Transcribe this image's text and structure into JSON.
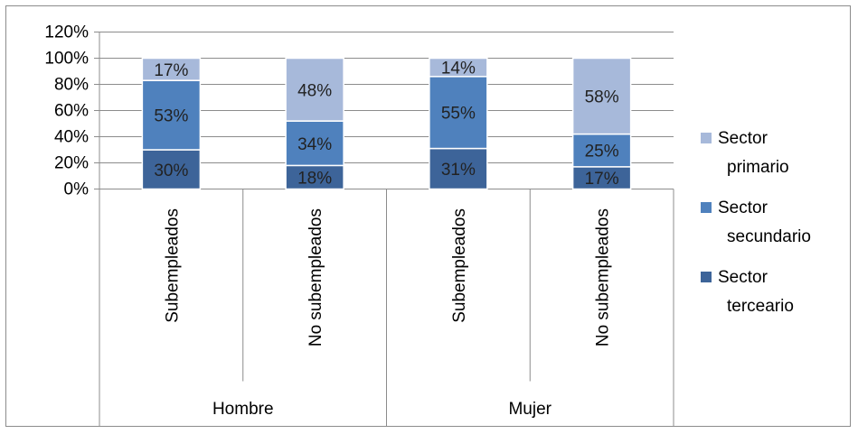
{
  "chart_data": {
    "type": "bar",
    "stacked": true,
    "percent_stacked": true,
    "groups": [
      "Hombre",
      "Mujer"
    ],
    "categories": [
      "Subempleados",
      "No subempleados",
      "Subempleados",
      "No subempleados"
    ],
    "category_groups": [
      0,
      0,
      1,
      1
    ],
    "series": [
      {
        "name": "Sector primario",
        "values": [
          30,
          18,
          31,
          17
        ],
        "color": "#3d6499"
      },
      {
        "name": "Sector secundario",
        "values": [
          53,
          34,
          55,
          25
        ],
        "color": "#4f81bd"
      },
      {
        "name": "Sector terceario",
        "values": [
          17,
          48,
          14,
          58
        ],
        "color": "#a7b9da"
      }
    ],
    "data_labels": [
      [
        "30%",
        "18%",
        "31%",
        "17%"
      ],
      [
        "53%",
        "34%",
        "55%",
        "25%"
      ],
      [
        "17%",
        "48%",
        "14%",
        "58%"
      ]
    ],
    "legend_lines": [
      [
        "Sector",
        "terceario"
      ],
      [
        "Sector",
        "secundario"
      ],
      [
        "Sector",
        "primario"
      ]
    ],
    "yticks": [
      "0%",
      "20%",
      "40%",
      "60%",
      "80%",
      "100%",
      "120%"
    ],
    "ylim": [
      0,
      120
    ],
    "grid": true,
    "legend_position": "right",
    "title": "",
    "xlabel": "",
    "ylabel": ""
  }
}
